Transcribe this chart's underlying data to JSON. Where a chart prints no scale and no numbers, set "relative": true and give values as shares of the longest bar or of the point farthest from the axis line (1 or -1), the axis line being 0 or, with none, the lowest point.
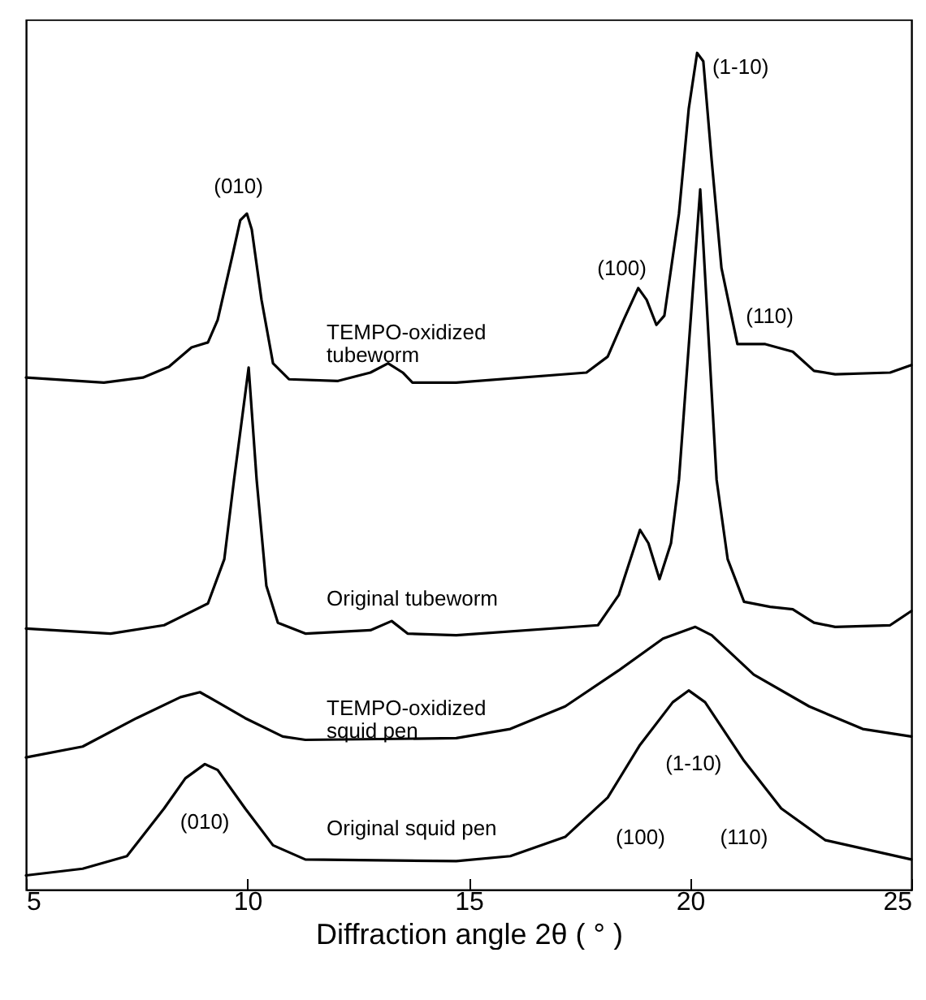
{
  "chart_data": {
    "type": "line",
    "relative": true,
    "xlabel": "Diffraction angle 2θ ( ° )",
    "xlim": [
      5,
      25
    ],
    "xticks": [
      5,
      10,
      15,
      20,
      25
    ],
    "annotations": [
      "(010)",
      "(100)",
      "(1-10)",
      "(110)",
      "(010)",
      "(1-10)",
      "(100)",
      "(110)"
    ],
    "series": [
      {
        "name": "TEMPO-oxidized\ntubeworm",
        "color": "#000000",
        "x": [
          5,
          6.76,
          7.64,
          8.23,
          8.74,
          9.11,
          9.33,
          9.66,
          9.84,
          9.99,
          10.1,
          10.32,
          10.58,
          10.94,
          12.05,
          12.78,
          13.18,
          13.51,
          13.73,
          14.72,
          17.66,
          18.14,
          18.5,
          18.83,
          19.02,
          19.24,
          19.42,
          19.75,
          19.97,
          20.16,
          20.3,
          20.49,
          20.71,
          21.07,
          21.7,
          22.32,
          22.8,
          23.28,
          24.52,
          25
        ],
        "values": [
          0.612,
          0.606,
          0.612,
          0.625,
          0.648,
          0.654,
          0.681,
          0.757,
          0.8,
          0.808,
          0.789,
          0.705,
          0.629,
          0.61,
          0.608,
          0.618,
          0.629,
          0.618,
          0.606,
          0.606,
          0.618,
          0.637,
          0.681,
          0.719,
          0.705,
          0.675,
          0.686,
          0.808,
          0.933,
          1.0,
          0.99,
          0.871,
          0.743,
          0.652,
          0.652,
          0.643,
          0.62,
          0.616,
          0.618,
          0.627
        ]
      },
      {
        "name": "Original tubeworm",
        "color": "#000000",
        "x": [
          5,
          6.91,
          8.12,
          9.11,
          9.48,
          9.7,
          10.03,
          10.21,
          10.43,
          10.69,
          11.31,
          12.78,
          13.26,
          13.62,
          14.72,
          17.92,
          18.39,
          18.87,
          19.06,
          19.31,
          19.57,
          19.75,
          20.23,
          20.6,
          20.85,
          21.22,
          21.81,
          22.32,
          22.8,
          23.28,
          24.52,
          25
        ],
        "values": [
          0.312,
          0.306,
          0.316,
          0.342,
          0.395,
          0.49,
          0.624,
          0.49,
          0.363,
          0.319,
          0.306,
          0.31,
          0.321,
          0.306,
          0.304,
          0.316,
          0.352,
          0.43,
          0.414,
          0.371,
          0.414,
          0.49,
          0.837,
          0.49,
          0.395,
          0.344,
          0.338,
          0.335,
          0.319,
          0.314,
          0.316,
          0.333
        ]
      },
      {
        "name": "TEMPO-oxidized\nsquid pen",
        "color": "#000000",
        "x": [
          5,
          6.28,
          7.5,
          8.49,
          8.93,
          9.33,
          9.95,
          10.8,
          11.31,
          14.72,
          15.94,
          17.18,
          18.39,
          19.39,
          20.12,
          20.49,
          21.44,
          22.69,
          23.9,
          25
        ],
        "values": [
          0.158,
          0.171,
          0.205,
          0.23,
          0.236,
          0.224,
          0.205,
          0.183,
          0.179,
          0.181,
          0.192,
          0.219,
          0.262,
          0.3,
          0.314,
          0.304,
          0.257,
          0.219,
          0.192,
          0.183
        ]
      },
      {
        "name": "Original squid pen",
        "color": "#000000",
        "x": [
          5,
          6.28,
          7.28,
          8.12,
          8.6,
          9.04,
          9.33,
          9.95,
          10.58,
          11.31,
          14.72,
          15.94,
          17.18,
          18.14,
          18.87,
          19.61,
          19.97,
          20.34,
          21.22,
          22.06,
          23.06,
          25
        ],
        "values": [
          0.017,
          0.025,
          0.04,
          0.097,
          0.133,
          0.15,
          0.143,
          0.097,
          0.053,
          0.036,
          0.034,
          0.04,
          0.063,
          0.11,
          0.173,
          0.224,
          0.238,
          0.224,
          0.154,
          0.097,
          0.059,
          0.036
        ]
      }
    ]
  }
}
